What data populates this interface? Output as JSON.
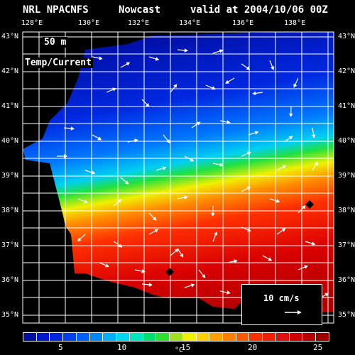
{
  "header": {
    "model": "NRL NPACNFS",
    "product": "Nowcast",
    "valid": "valid at 2004/10/06 00Z"
  },
  "map": {
    "depth_label": "50 m",
    "field_label": "Temp/Current",
    "lon_ticks": [
      "128°E",
      "130°E",
      "132°E",
      "134°E",
      "136°E",
      "138°E"
    ],
    "lat_ticks": [
      "43°N",
      "42°N",
      "41°N",
      "40°N",
      "39°N",
      "38°N",
      "37°N",
      "36°N",
      "35°N"
    ],
    "land_color": "#000000",
    "grid_color": "#ffffff",
    "vector_color": "#ffffff"
  },
  "scale": {
    "label": "10 cm/s"
  },
  "colorbar": {
    "tick_labels": [
      "5",
      "10",
      "15",
      "20",
      "25"
    ],
    "unit": "°C",
    "colors": [
      "#000fa0",
      "#0018c8",
      "#0028e0",
      "#0040f0",
      "#0060ff",
      "#0088ff",
      "#00b0ff",
      "#00d8f0",
      "#00e8c0",
      "#00e070",
      "#30e030",
      "#a0e020",
      "#f0f000",
      "#ffd000",
      "#ffa000",
      "#ff8000",
      "#ff5800",
      "#ff3000",
      "#f02000",
      "#e01010",
      "#d00000",
      "#b80000",
      "#a00000"
    ]
  }
}
